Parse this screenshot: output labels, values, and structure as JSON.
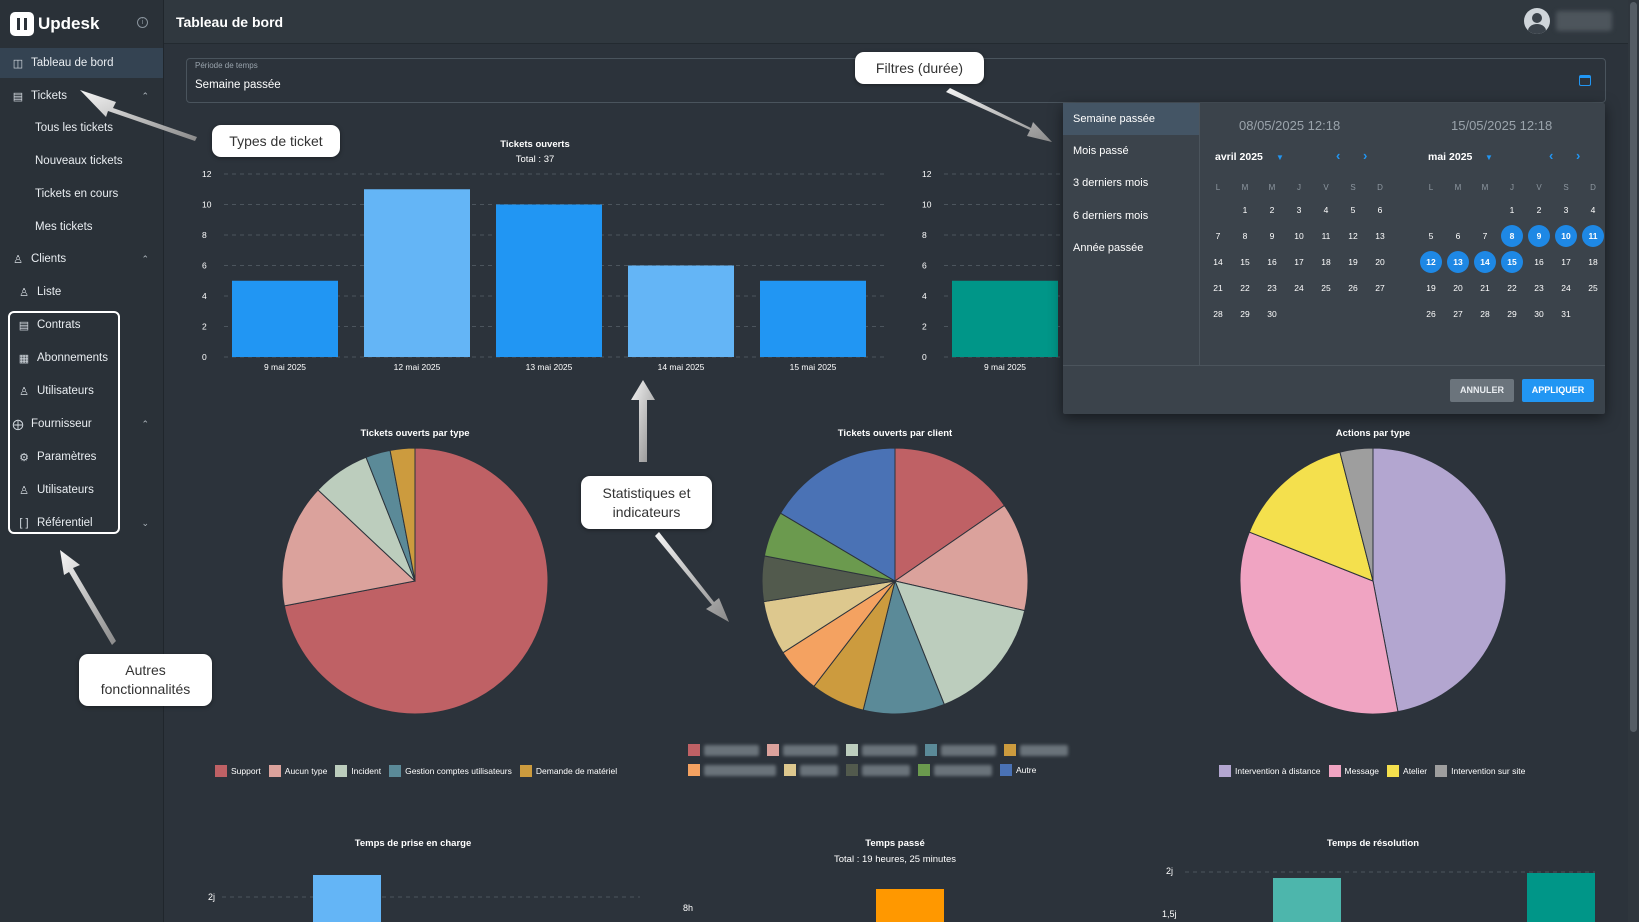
{
  "app": {
    "name": "Updesk",
    "page_title": "Tableau de bord"
  },
  "sidebar": {
    "items": [
      {
        "label": "Tableau de bord",
        "icon": "dashboard-icon"
      },
      {
        "label": "Tickets",
        "icon": "ticket-icon"
      },
      {
        "label": "Tous les tickets"
      },
      {
        "label": "Nouveaux tickets"
      },
      {
        "label": "Tickets en cours"
      },
      {
        "label": "Mes tickets"
      },
      {
        "label": "Clients",
        "icon": "users-icon"
      },
      {
        "label": "Liste",
        "icon": "list-users-icon"
      },
      {
        "label": "Contrats",
        "icon": "contract-icon"
      },
      {
        "label": "Abonnements",
        "icon": "calendar-icon"
      },
      {
        "label": "Utilisateurs",
        "icon": "user-icon"
      },
      {
        "label": "Fournisseur",
        "icon": "supplier-icon"
      },
      {
        "label": "Paramètres",
        "icon": "gear-icon"
      },
      {
        "label": "Utilisateurs",
        "icon": "user-icon"
      },
      {
        "label": "Référentiel",
        "icon": "brackets-icon"
      }
    ]
  },
  "period": {
    "label": "Période de temps",
    "value": "Semaine passée"
  },
  "dropdown": {
    "presets": [
      "Semaine passée",
      "Mois passé",
      "3 derniers mois",
      "6 derniers mois",
      "Année passée"
    ],
    "start_date": "08/05/2025  12:18",
    "end_date": "15/05/2025  12:18",
    "left_month": "avril 2025",
    "right_month": "mai 2025",
    "dow": [
      "L",
      "M",
      "M",
      "J",
      "V",
      "S",
      "D"
    ],
    "cancel": "ANNULER",
    "apply": "APPLIQUER"
  },
  "colors": {
    "accent": "#2196f3",
    "selected_day": "#1e88e5"
  },
  "chart_data": [
    {
      "type": "bar",
      "title": "Tickets ouverts",
      "subtitle": "Total : 37",
      "categories": [
        "9 mai 2025",
        "12 mai 2025",
        "13 mai 2025",
        "14 mai 2025",
        "15 mai 2025"
      ],
      "values": [
        5,
        11,
        10,
        6,
        5
      ],
      "ylim": [
        0,
        12
      ],
      "yticks": [
        "0",
        "2",
        "4",
        "6",
        "8",
        "10",
        "12"
      ],
      "colors": [
        "#2196f3",
        "#64b5f6",
        "#2196f3",
        "#64b5f6",
        "#2196f3"
      ]
    },
    {
      "type": "bar",
      "categories": [
        "9 mai 2025"
      ],
      "values": [
        5
      ],
      "ylim": [
        0,
        12
      ],
      "yticks": [
        "0",
        "2",
        "4",
        "6",
        "8",
        "10",
        "12"
      ],
      "colors": [
        "#009688"
      ]
    },
    {
      "type": "pie",
      "title": "Tickets ouverts par type",
      "labels": [
        "Support",
        "Aucun type",
        "Incident",
        "Gestion comptes utilisateurs",
        "Demande de matériel"
      ],
      "values": [
        72,
        15,
        7,
        3,
        3
      ],
      "colors": [
        "#bf6165",
        "#dba29c",
        "#bccdbd",
        "#5b8a98",
        "#cc9b3e"
      ]
    },
    {
      "type": "pie",
      "title": "Tickets ouverts par client",
      "labels": [
        "",
        "",
        "",
        "",
        "",
        "",
        "",
        "",
        "",
        "Autre"
      ],
      "values": [
        14,
        12,
        14,
        9,
        6,
        5,
        6,
        5,
        5,
        15
      ],
      "colors": [
        "#bf6165",
        "#dba29c",
        "#bccdbd",
        "#5b8a98",
        "#cc9b3e",
        "#f4a261",
        "#ddc88e",
        "#525a4d",
        "#6b9a4e",
        "#4a72b5"
      ],
      "legend_visible": [
        false,
        false,
        false,
        false,
        false,
        false,
        false,
        false,
        false,
        true
      ]
    },
    {
      "type": "pie",
      "title": "Actions par type",
      "labels": [
        "Intervention à distance",
        "Message",
        "Atelier",
        "Intervention sur site"
      ],
      "values": [
        47,
        34,
        15,
        4
      ],
      "colors": [
        "#b3a6d0",
        "#f0a4c2",
        "#f4e04d",
        "#9e9e9e"
      ]
    }
  ],
  "bottom_charts": {
    "t1": "Temps de prise en charge",
    "t2": "Temps passé",
    "t2_sub": "Total : 19 heures, 25 minutes",
    "t3": "Temps de résolution",
    "y1": "2j",
    "y2": "8h",
    "y3a": "2j",
    "y3b": "1,5j"
  },
  "callouts": {
    "filters": "Filtres (durée)",
    "types": "Types de ticket",
    "stats_line1": "Statistiques et",
    "stats_line2": "indicateurs",
    "other_line1": "Autres",
    "other_line2": "fonctionnalités"
  }
}
